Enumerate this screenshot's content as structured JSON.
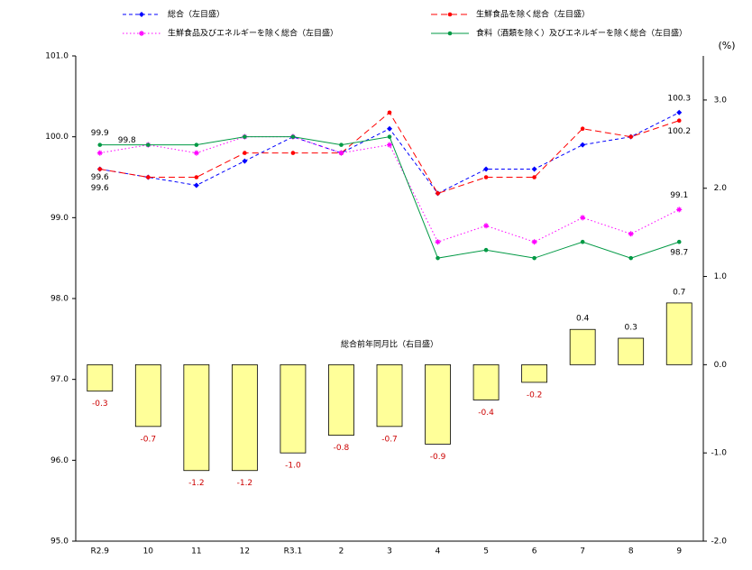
{
  "chart_data": {
    "type": "bar-line",
    "categories": [
      "R2.9",
      "10",
      "11",
      "12",
      "R3.1",
      "2",
      "3",
      "4",
      "5",
      "6",
      "7",
      "8",
      "9"
    ],
    "ylim": [
      95,
      101
    ],
    "yticks": [
      {
        "value": 95,
        "label": "95.0"
      },
      {
        "value": 96,
        "label": "96.0"
      },
      {
        "value": 97,
        "label": "97.0"
      },
      {
        "value": 98,
        "label": "98.0"
      },
      {
        "value": 99,
        "label": "99.0"
      },
      {
        "value": 100,
        "label": "100.0"
      },
      {
        "value": 101,
        "label": "101.0"
      }
    ],
    "y2lim": [
      -2,
      3.5
    ],
    "y2ticks": [
      {
        "value": -2,
        "label": "-2.0"
      },
      {
        "value": -1,
        "label": "-1.0"
      },
      {
        "value": 0,
        "label": "0.0"
      },
      {
        "value": 1,
        "label": "1.0"
      },
      {
        "value": 2,
        "label": "2.0"
      },
      {
        "value": 3,
        "label": "3.0"
      }
    ],
    "y2label": "(%)",
    "series": [
      {
        "name": "総合前年同月比（右目盛）",
        "kind": "bar",
        "axis": "y2",
        "color": "#ffff99",
        "values": [
          -0.3,
          -0.7,
          -1.2,
          -1.2,
          -1.0,
          -0.8,
          -0.7,
          -0.9,
          -0.4,
          -0.2,
          0.4,
          0.3,
          0.7
        ],
        "value_labels": [
          "-0.3",
          "-0.7",
          "-1.2",
          "-1.2",
          "-1.0",
          "-0.8",
          "-0.7",
          "-0.9",
          "-0.4",
          "-0.2",
          "0.4",
          "0.3",
          "0.7"
        ]
      },
      {
        "name": "総合（左目盛）",
        "kind": "line",
        "color": "#0000ff",
        "dash": "dashed",
        "marker": "diamond",
        "values": [
          99.6,
          99.5,
          99.4,
          99.7,
          100.0,
          99.8,
          100.1,
          99.3,
          99.6,
          99.6,
          99.9,
          100.0,
          100.3
        ],
        "value_labels": [
          "99.6",
          null,
          null,
          null,
          null,
          null,
          null,
          null,
          null,
          null,
          null,
          null,
          "100.3"
        ]
      },
      {
        "name": "生鮮食品を除く総合（左目盛）",
        "kind": "line",
        "color": "#ff0000",
        "dash": "longdash",
        "marker": "circle",
        "values": [
          99.6,
          99.5,
          99.5,
          99.8,
          99.8,
          99.8,
          100.3,
          99.3,
          99.5,
          99.5,
          100.1,
          100.0,
          100.2
        ],
        "value_labels": [
          "99.6",
          null,
          null,
          null,
          null,
          null,
          null,
          null,
          null,
          null,
          null,
          null,
          "100.2"
        ]
      },
      {
        "name": "生鮮食品及びエネルギーを除く総合（左目盛）",
        "kind": "line",
        "color": "#ff00ff",
        "dash": "dotted",
        "marker": "star",
        "values": [
          99.8,
          99.9,
          99.8,
          100.0,
          100.0,
          99.8,
          99.9,
          98.7,
          98.9,
          98.7,
          99.0,
          98.8,
          99.1
        ],
        "value_labels": [
          "99.8",
          null,
          null,
          null,
          null,
          null,
          null,
          null,
          null,
          null,
          null,
          null,
          "99.1"
        ]
      },
      {
        "name": "食料（酒類を除く）及びエネルギーを除く総合（左目盛）",
        "kind": "line",
        "color": "#009944",
        "dash": "solid",
        "marker": "circle",
        "values": [
          99.9,
          99.9,
          99.9,
          100.0,
          100.0,
          99.9,
          100.0,
          98.5,
          98.6,
          98.5,
          98.7,
          98.5,
          98.7
        ],
        "value_labels": [
          "99.9",
          null,
          null,
          null,
          null,
          null,
          null,
          null,
          null,
          null,
          null,
          null,
          "98.7"
        ]
      }
    ]
  }
}
